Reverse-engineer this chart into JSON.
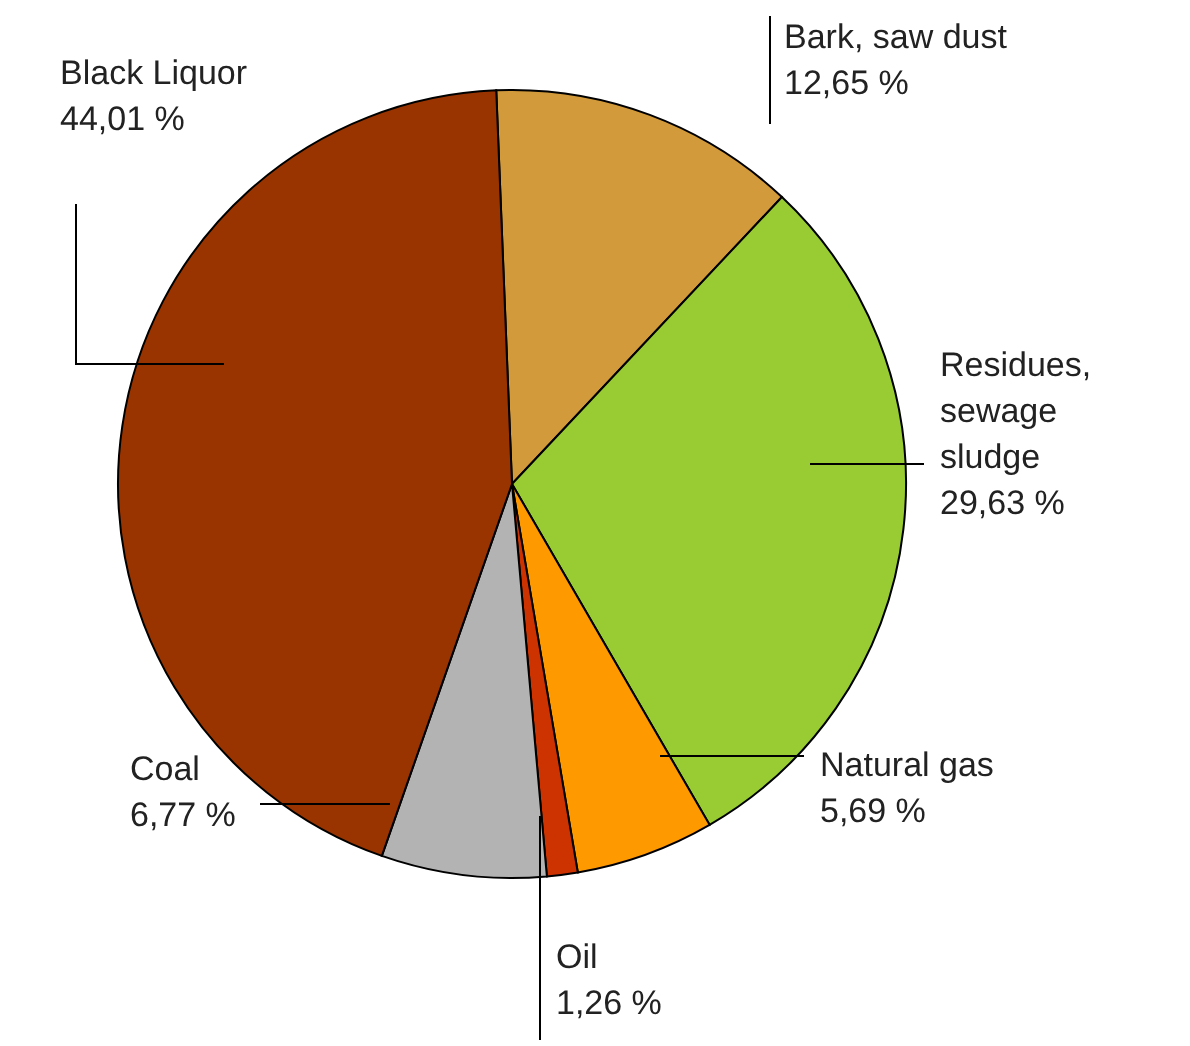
{
  "chart_data": {
    "type": "pie",
    "categories": [
      "Bark, saw dust",
      "Residues, sewage sludge",
      "Natural gas",
      "Oil",
      "Coal",
      "Black Liquor"
    ],
    "values": [
      12.65,
      29.63,
      5.69,
      1.26,
      6.77,
      44.01
    ],
    "value_labels": [
      "12,65 %",
      "29,63 %",
      "5,69 %",
      "1,26 %",
      "6,77 %",
      "44,01 %"
    ],
    "colors": [
      "#d29a3a",
      "#99cc33",
      "#ff9900",
      "#cc3300",
      "#b3b3b3",
      "#993300"
    ]
  }
}
